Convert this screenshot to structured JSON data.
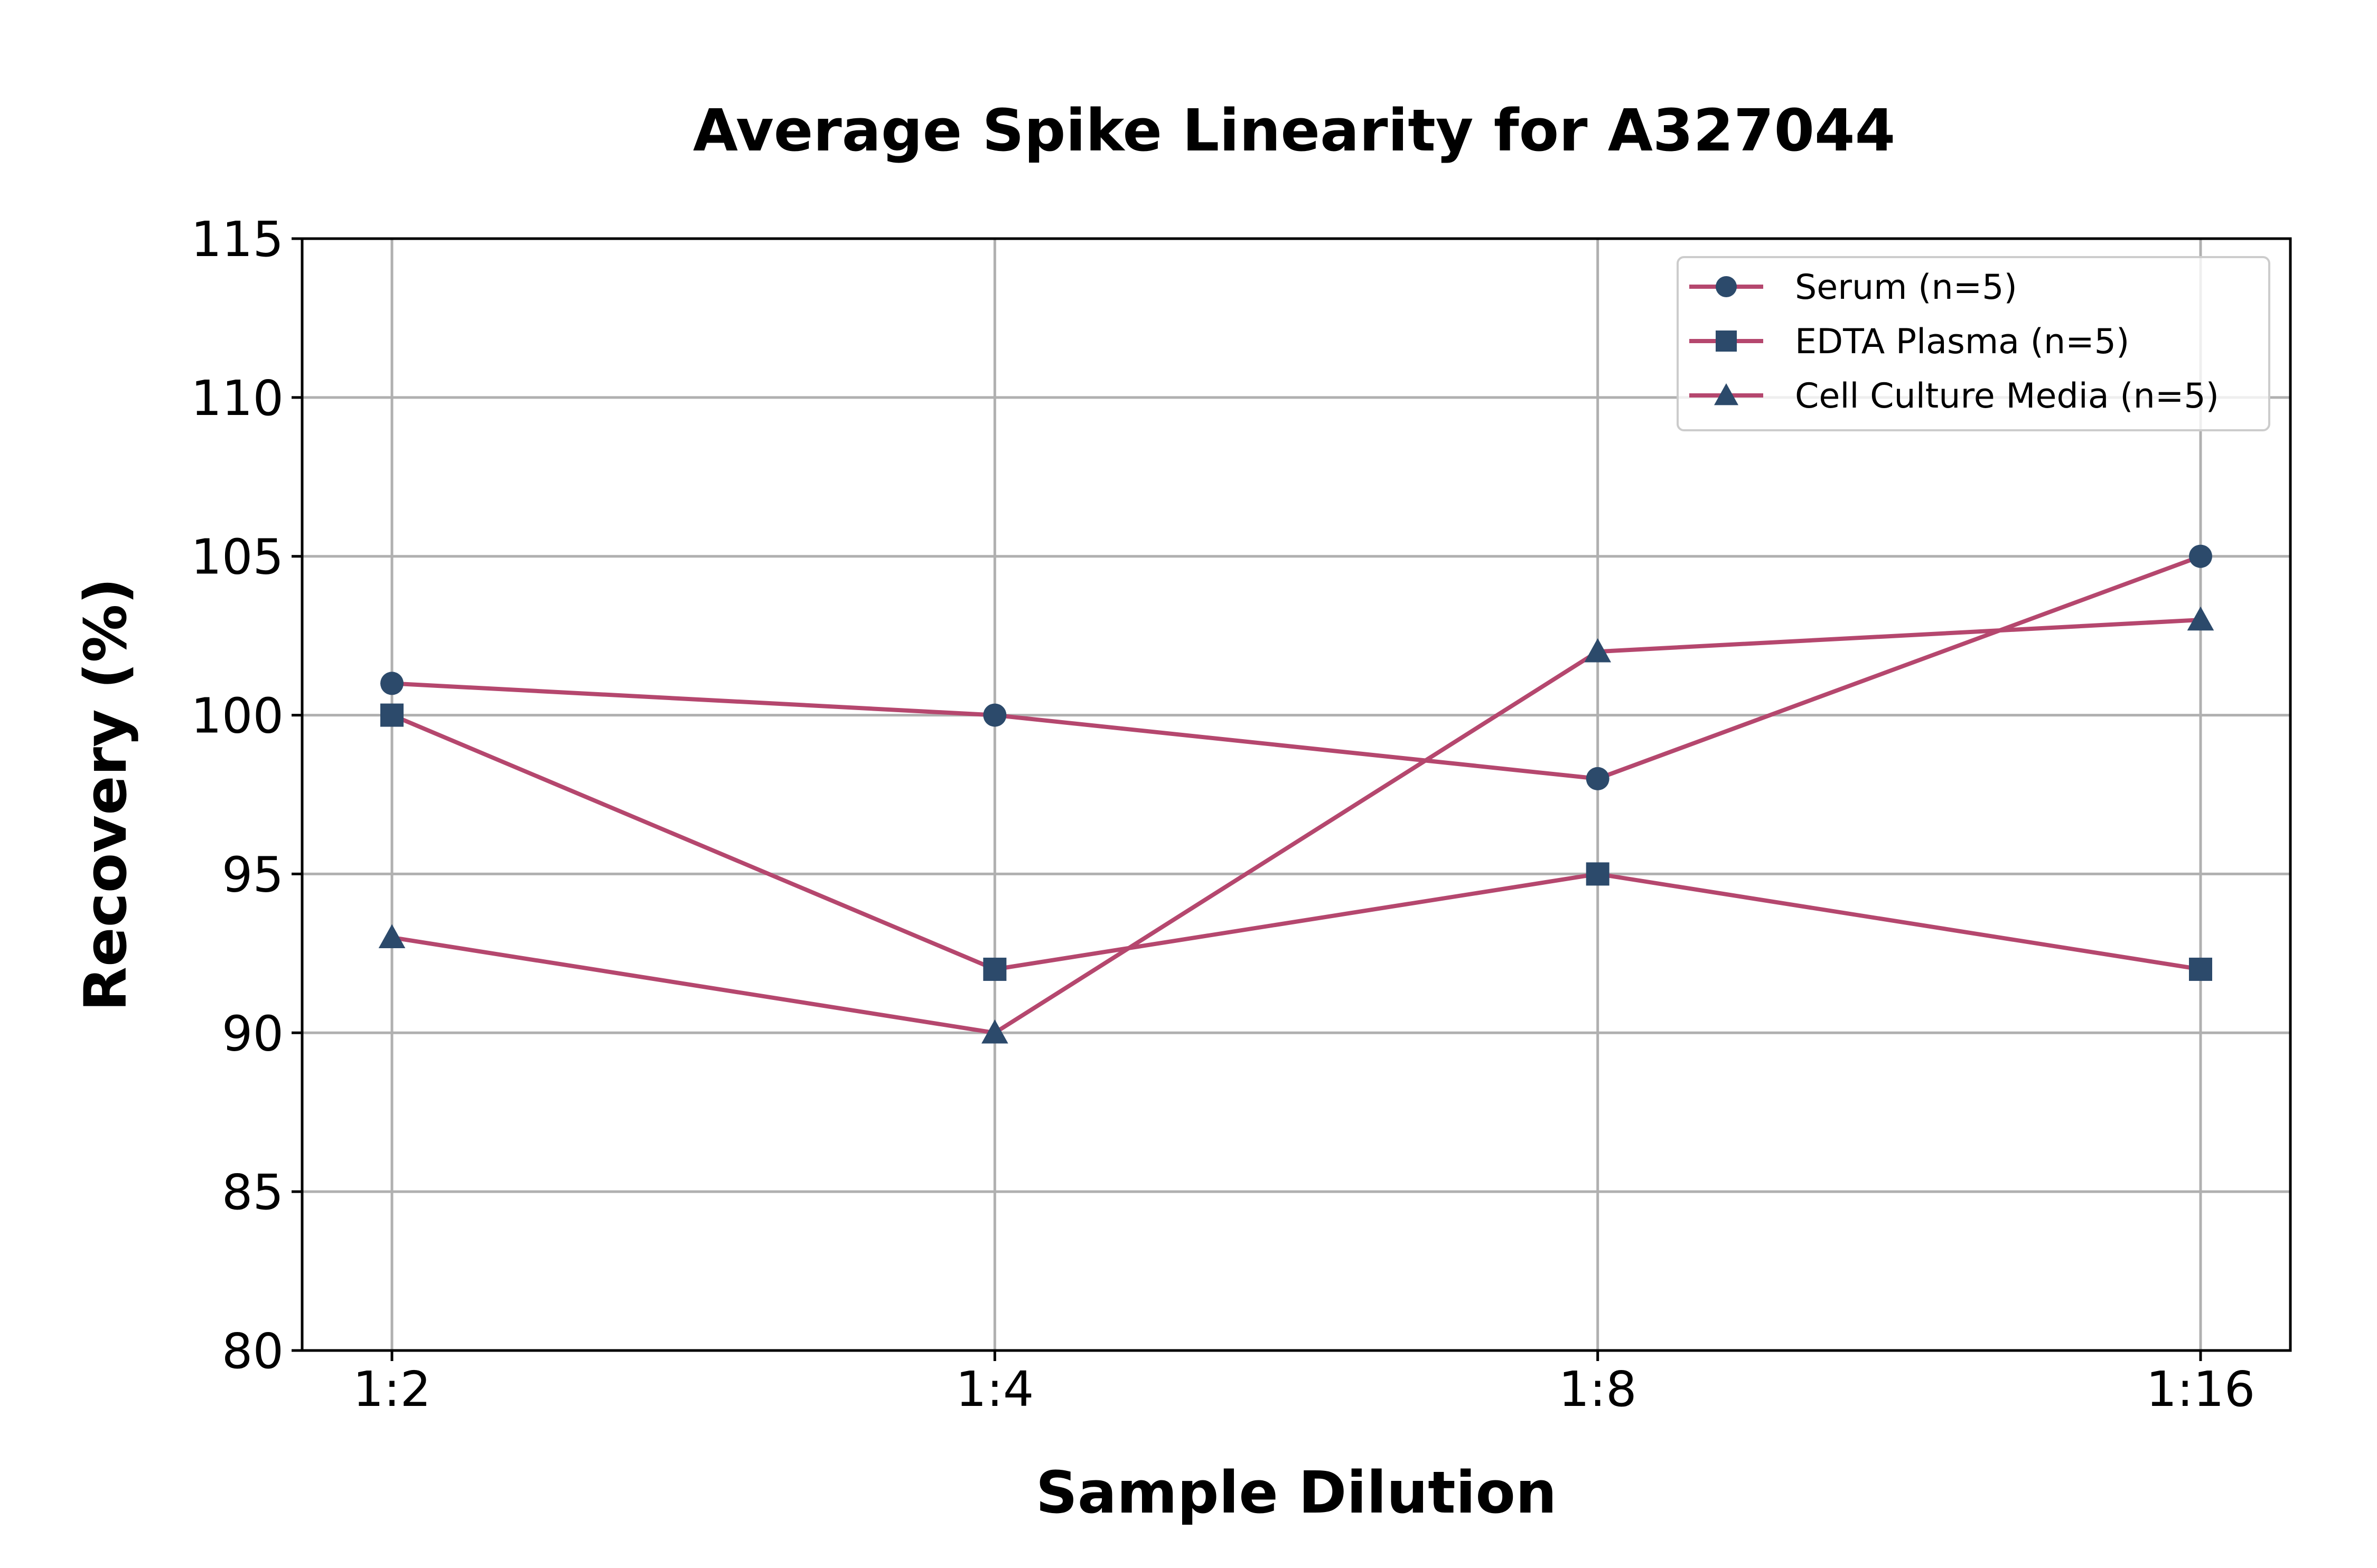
{
  "chart_data": {
    "type": "line",
    "title": "Average Spike Linearity for A327044",
    "xlabel": "Sample Dilution",
    "ylabel": "Recovery (%)",
    "categories": [
      "1:2",
      "1:4",
      "1:8",
      "1:16"
    ],
    "ylim": [
      80,
      115
    ],
    "yticks": [
      80,
      85,
      90,
      95,
      100,
      105,
      110,
      115
    ],
    "grid": true,
    "legend_position": "top-right",
    "line_color": "#b5476e",
    "marker_color": "#2c4a6b",
    "series": [
      {
        "name": "Serum (n=5)",
        "marker": "circle",
        "values": [
          101,
          100,
          98,
          105
        ]
      },
      {
        "name": "EDTA Plasma (n=5)",
        "marker": "square",
        "values": [
          100,
          92,
          95,
          92
        ]
      },
      {
        "name": "Cell Culture Media (n=5)",
        "marker": "triangle",
        "values": [
          93,
          90,
          102,
          103
        ]
      }
    ]
  }
}
